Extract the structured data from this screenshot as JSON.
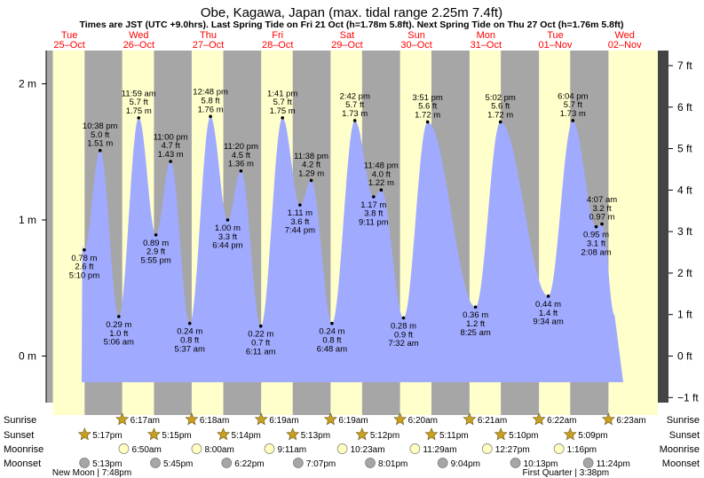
{
  "header": {
    "title": "Obe, Kagawa, Japan (max. tidal range 2.25m 7.4ft)",
    "subtitle": "Times are JST (UTC +9.0hrs). Last Spring Tide on Fri 21 Oct (h=1.78m 5.8ft). Next Spring Tide on Thu 27 Oct (h=1.76m 5.8ft)"
  },
  "chart_data": {
    "type": "area",
    "title": "Obe, Kagawa, Japan (max. tidal range 2.25m 7.4ft)",
    "y_left_label": "m",
    "ylim_m": [
      -0.35,
      2.25
    ],
    "y_left_ticks": [
      "0 m",
      "1 m",
      "2 m"
    ],
    "y_right_ticks": [
      "−1 ft",
      "0 ft",
      "1 ft",
      "2 ft",
      "3 ft",
      "4 ft",
      "5 ft",
      "6 ft",
      "7 ft"
    ],
    "days": [
      {
        "dow": "Tue",
        "date": "25–Oct"
      },
      {
        "dow": "Wed",
        "date": "26–Oct"
      },
      {
        "dow": "Thu",
        "date": "27–Oct"
      },
      {
        "dow": "Fri",
        "date": "28–Oct"
      },
      {
        "dow": "Sat",
        "date": "29–Oct"
      },
      {
        "dow": "Sun",
        "date": "30–Oct"
      },
      {
        "dow": "Mon",
        "date": "31–Oct"
      },
      {
        "dow": "Tue",
        "date": "01–Nov"
      },
      {
        "dow": "Wed",
        "date": "02–Nov"
      }
    ],
    "tides": [
      {
        "type": "low",
        "day": 0,
        "time": "5:10 pm",
        "m": "0.78 m",
        "ft": "2.6 ft",
        "h": 17.17,
        "v": 0.78
      },
      {
        "type": "high",
        "day": 0,
        "time": "10:38 pm",
        "m": "1.51 m",
        "ft": "5.0 ft",
        "h": 22.63,
        "v": 1.51
      },
      {
        "type": "low",
        "day": 1,
        "time": "5:06 am",
        "m": "0.29 m",
        "ft": "1.0 ft",
        "h": 5.1,
        "v": 0.29
      },
      {
        "type": "high",
        "day": 1,
        "time": "11:59 am",
        "m": "1.75 m",
        "ft": "5.7 ft",
        "h": 11.98,
        "v": 1.75
      },
      {
        "type": "low",
        "day": 1,
        "time": "5:55 pm",
        "m": "0.89 m",
        "ft": "2.9 ft",
        "h": 17.92,
        "v": 0.89
      },
      {
        "type": "high",
        "day": 1,
        "time": "11:00 pm",
        "m": "1.43 m",
        "ft": "4.7 ft",
        "h": 23.0,
        "v": 1.43
      },
      {
        "type": "low",
        "day": 2,
        "time": "5:37 am",
        "m": "0.24 m",
        "ft": "0.8 ft",
        "h": 5.62,
        "v": 0.24
      },
      {
        "type": "high",
        "day": 2,
        "time": "12:48 pm",
        "m": "1.76 m",
        "ft": "5.8 ft",
        "h": 12.8,
        "v": 1.76
      },
      {
        "type": "low",
        "day": 2,
        "time": "6:44 pm",
        "m": "1.00 m",
        "ft": "3.3 ft",
        "h": 18.73,
        "v": 1.0
      },
      {
        "type": "high",
        "day": 2,
        "time": "11:20 pm",
        "m": "1.36 m",
        "ft": "4.5 ft",
        "h": 23.33,
        "v": 1.36
      },
      {
        "type": "low",
        "day": 3,
        "time": "6:11 am",
        "m": "0.22 m",
        "ft": "0.7 ft",
        "h": 6.18,
        "v": 0.22
      },
      {
        "type": "high",
        "day": 3,
        "time": "1:41 pm",
        "m": "1.75 m",
        "ft": "5.7 ft",
        "h": 13.68,
        "v": 1.75
      },
      {
        "type": "low",
        "day": 3,
        "time": "7:44 pm",
        "m": "1.11 m",
        "ft": "3.6 ft",
        "h": 19.73,
        "v": 1.11
      },
      {
        "type": "high",
        "day": 3,
        "time": "11:38 pm",
        "m": "1.29 m",
        "ft": "4.2 ft",
        "h": 23.63,
        "v": 1.29
      },
      {
        "type": "low",
        "day": 4,
        "time": "6:48 am",
        "m": "0.24 m",
        "ft": "0.8 ft",
        "h": 6.8,
        "v": 0.24
      },
      {
        "type": "high",
        "day": 4,
        "time": "2:42 pm",
        "m": "1.73 m",
        "ft": "5.7 ft",
        "h": 14.7,
        "v": 1.73
      },
      {
        "type": "low",
        "day": 4,
        "time": "9:11 pm",
        "m": "1.17 m",
        "ft": "3.8 ft",
        "h": 21.18,
        "v": 1.17
      },
      {
        "type": "high",
        "day": 4,
        "time": "11:48 pm",
        "m": "1.22 m",
        "ft": "4.0 ft",
        "h": 23.8,
        "v": 1.22
      },
      {
        "type": "low",
        "day": 5,
        "time": "7:32 am",
        "m": "0.28 m",
        "ft": "0.9 ft",
        "h": 7.53,
        "v": 0.28
      },
      {
        "type": "high",
        "day": 5,
        "time": "3:51 pm",
        "m": "1.72 m",
        "ft": "5.6 ft",
        "h": 15.85,
        "v": 1.72
      },
      {
        "type": "low",
        "day": 6,
        "time": "8:25 am",
        "m": "0.36 m",
        "ft": "1.2 ft",
        "h": 8.42,
        "v": 0.36
      },
      {
        "type": "high",
        "day": 6,
        "time": "5:02 pm",
        "m": "1.72 m",
        "ft": "5.6 ft",
        "h": 17.03,
        "v": 1.72
      },
      {
        "type": "low",
        "day": 7,
        "time": "9:34 am",
        "m": "0.44 m",
        "ft": "1.4 ft",
        "h": 9.57,
        "v": 0.44
      },
      {
        "type": "high",
        "day": 7,
        "time": "6:04 pm",
        "m": "1.73 m",
        "ft": "5.7 ft",
        "h": 18.07,
        "v": 1.73
      },
      {
        "type": "low",
        "day": 8,
        "time": "2:08 am",
        "m": "0.95 m",
        "ft": "3.1 ft",
        "h": 2.13,
        "v": 0.95
      },
      {
        "type": "high",
        "day": 8,
        "time": "4:07 am",
        "m": "0.97 m",
        "ft": "3.2 ft",
        "h": 4.12,
        "v": 0.97
      }
    ],
    "sun": {
      "sunrise": [
        {
          "day": 1,
          "time": "6:17am",
          "h": 6.28
        },
        {
          "day": 2,
          "time": "6:18am",
          "h": 6.3
        },
        {
          "day": 3,
          "time": "6:19am",
          "h": 6.32
        },
        {
          "day": 4,
          "time": "6:19am",
          "h": 6.32
        },
        {
          "day": 5,
          "time": "6:20am",
          "h": 6.33
        },
        {
          "day": 6,
          "time": "6:21am",
          "h": 6.35
        },
        {
          "day": 7,
          "time": "6:22am",
          "h": 6.37
        },
        {
          "day": 8,
          "time": "6:23am",
          "h": 6.38
        }
      ],
      "sunset": [
        {
          "day": 0,
          "time": "5:17pm",
          "h": 17.28
        },
        {
          "day": 1,
          "time": "5:15pm",
          "h": 17.25
        },
        {
          "day": 2,
          "time": "5:14pm",
          "h": 17.23
        },
        {
          "day": 3,
          "time": "5:13pm",
          "h": 17.22
        },
        {
          "day": 4,
          "time": "5:12pm",
          "h": 17.2
        },
        {
          "day": 5,
          "time": "5:11pm",
          "h": 17.18
        },
        {
          "day": 6,
          "time": "5:10pm",
          "h": 17.17
        },
        {
          "day": 7,
          "time": "5:09pm",
          "h": 17.15
        }
      ]
    },
    "moon": {
      "moonrise": [
        {
          "day": 1,
          "time": "6:50am",
          "h": 6.83
        },
        {
          "day": 2,
          "time": "8:00am",
          "h": 8.0
        },
        {
          "day": 3,
          "time": "9:11am",
          "h": 9.18
        },
        {
          "day": 4,
          "time": "10:23am",
          "h": 10.38
        },
        {
          "day": 5,
          "time": "11:29am",
          "h": 11.48
        },
        {
          "day": 6,
          "time": "12:27pm",
          "h": 12.45
        },
        {
          "day": 7,
          "time": "1:16pm",
          "h": 13.27
        }
      ],
      "moonset": [
        {
          "day": 0,
          "time": "5:13pm",
          "h": 17.22
        },
        {
          "day": 1,
          "time": "5:45pm",
          "h": 17.75
        },
        {
          "day": 2,
          "time": "6:22pm",
          "h": 18.37
        },
        {
          "day": 3,
          "time": "7:07pm",
          "h": 19.12
        },
        {
          "day": 4,
          "time": "8:01pm",
          "h": 20.02
        },
        {
          "day": 5,
          "time": "9:04pm",
          "h": 21.07
        },
        {
          "day": 6,
          "time": "10:13pm",
          "h": 22.22
        },
        {
          "day": 7,
          "time": "11:24pm",
          "h": 23.4
        }
      ],
      "phases": [
        {
          "text": "New Moon | 7:48pm",
          "day": 0,
          "h": 19.8
        },
        {
          "text": "First Quarter | 3:38pm",
          "day": 7,
          "h": 15.63
        }
      ]
    },
    "row_labels": [
      "Sunrise",
      "Sunset",
      "Moonrise",
      "Moonset"
    ],
    "colors": {
      "water": "#a0aaff",
      "day": "#ffffcc",
      "night": "#a6a6a6",
      "outside": "#a6a6a6",
      "day_label": "#ff0000",
      "sun_star": "#c8a020",
      "moonrise_disc": "#ffffc0",
      "moonset_disc": "#a6a6a6"
    }
  }
}
